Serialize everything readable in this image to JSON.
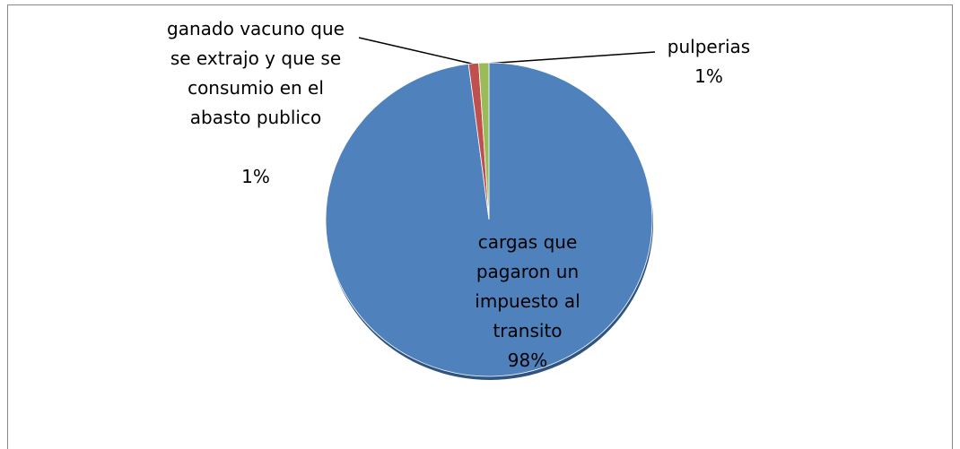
{
  "chart_data": {
    "type": "pie",
    "categories": [
      "cargas que pagaron un impuesto al transito",
      "ganado vacuno que se extrajo y que se consumio en el abasto publico",
      "pulperias"
    ],
    "values": [
      98,
      1,
      1
    ],
    "value_labels": [
      "98%",
      "1%",
      "1%"
    ],
    "colors": [
      "#4f81bd",
      "#c0504d",
      "#9bbb59"
    ]
  }
}
